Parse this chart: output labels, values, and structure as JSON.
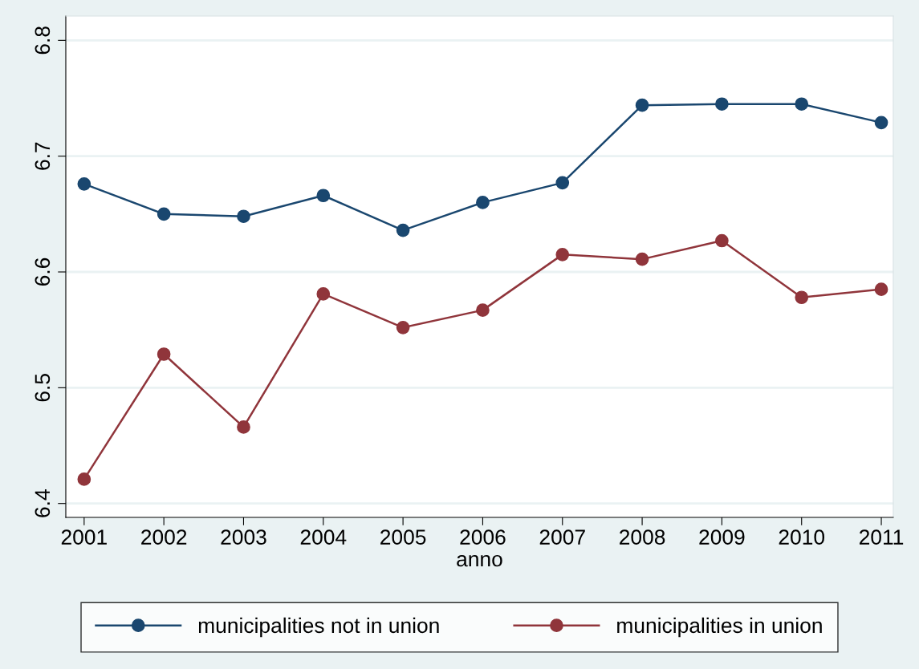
{
  "chart_data": {
    "type": "line",
    "xlabel": "anno",
    "x": [
      2001,
      2002,
      2003,
      2004,
      2005,
      2006,
      2007,
      2008,
      2009,
      2010,
      2011
    ],
    "series": [
      {
        "name": "municipalities not in union",
        "color": "#1a476f",
        "values": [
          6.676,
          6.65,
          6.648,
          6.666,
          6.636,
          6.66,
          6.677,
          6.744,
          6.745,
          6.745,
          6.729
        ]
      },
      {
        "name": "municipalities in union",
        "color": "#90353b",
        "values": [
          6.421,
          6.529,
          6.466,
          6.581,
          6.552,
          6.567,
          6.615,
          6.611,
          6.627,
          6.578,
          6.585
        ]
      }
    ],
    "xlim": [
      2000.77,
      2011.15
    ],
    "xticks": [
      2001,
      2002,
      2003,
      2004,
      2005,
      2006,
      2007,
      2008,
      2009,
      2010,
      2011
    ],
    "ylim": [
      6.388,
      6.821
    ],
    "yticks": [
      6.4,
      6.5,
      6.6,
      6.7,
      6.8
    ],
    "grid": "y",
    "legend": "bottom",
    "marker": "circle",
    "line_style": "solid"
  }
}
